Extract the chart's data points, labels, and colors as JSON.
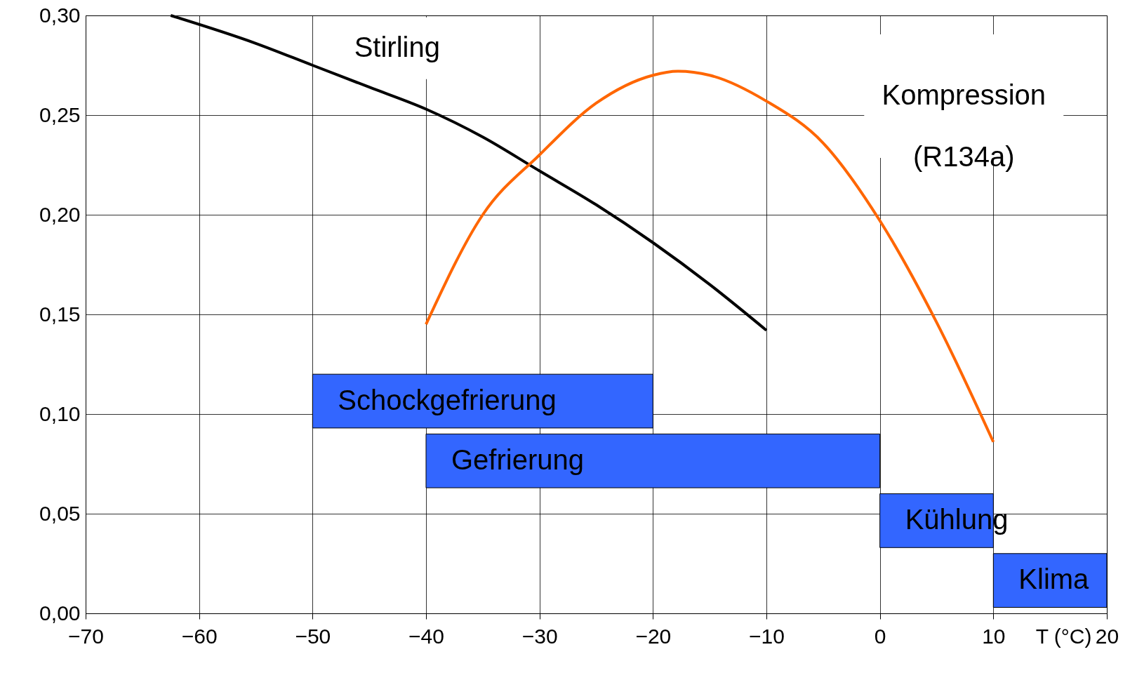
{
  "chart_data": {
    "type": "line",
    "xlabel": "T (°C)",
    "xlim": [
      -70,
      20
    ],
    "xticks": [
      -70,
      -60,
      -50,
      -40,
      -30,
      -20,
      -10,
      0,
      10,
      20
    ],
    "ylim": [
      0,
      0.3
    ],
    "yticks": [
      {
        "value": 0,
        "label": "0,00"
      },
      {
        "value": 0.05,
        "label": "0,05"
      },
      {
        "value": 0.1,
        "label": "0,10"
      },
      {
        "value": 0.15,
        "label": "0,15"
      },
      {
        "value": 0.2,
        "label": "0,20"
      },
      {
        "value": 0.25,
        "label": "0,25"
      },
      {
        "value": 0.3,
        "label": "0,30"
      }
    ],
    "grid": true,
    "marker": "none",
    "line_style": "solid",
    "series": [
      {
        "name": "Stirling",
        "color": "#000000",
        "x": [
          -62.5,
          -55,
          -50,
          -45,
          -40,
          -35,
          -30,
          -25,
          -20,
          -15,
          -10
        ],
        "values": [
          0.3,
          0.286,
          0.275,
          0.264,
          0.253,
          0.239,
          0.222,
          0.205,
          0.186,
          0.165,
          0.142
        ]
      },
      {
        "name": "Kompression (R134a)",
        "color": "#ff6600",
        "x": [
          -40,
          -35,
          -30,
          -25,
          -20,
          -17.8,
          -15,
          -10,
          -5,
          0,
          5,
          10
        ],
        "values": [
          0.145,
          0.2,
          0.23,
          0.256,
          0.27,
          0.272,
          0.27,
          0.257,
          0.236,
          0.197,
          0.146,
          0.086
        ]
      }
    ],
    "bands": [
      {
        "axis": "x",
        "from": -50,
        "to": -20,
        "label": "Schockgefrierung",
        "color": "#3366ff"
      },
      {
        "axis": "x",
        "from": -40,
        "to": 0,
        "label": "Gefrierung",
        "color": "#3366ff"
      },
      {
        "axis": "x",
        "from": 0,
        "to": 10,
        "label": "Kühlung",
        "color": "#3366ff"
      },
      {
        "axis": "x",
        "from": 10,
        "to": 20,
        "label": "Klima",
        "color": "#3366ff"
      }
    ]
  }
}
